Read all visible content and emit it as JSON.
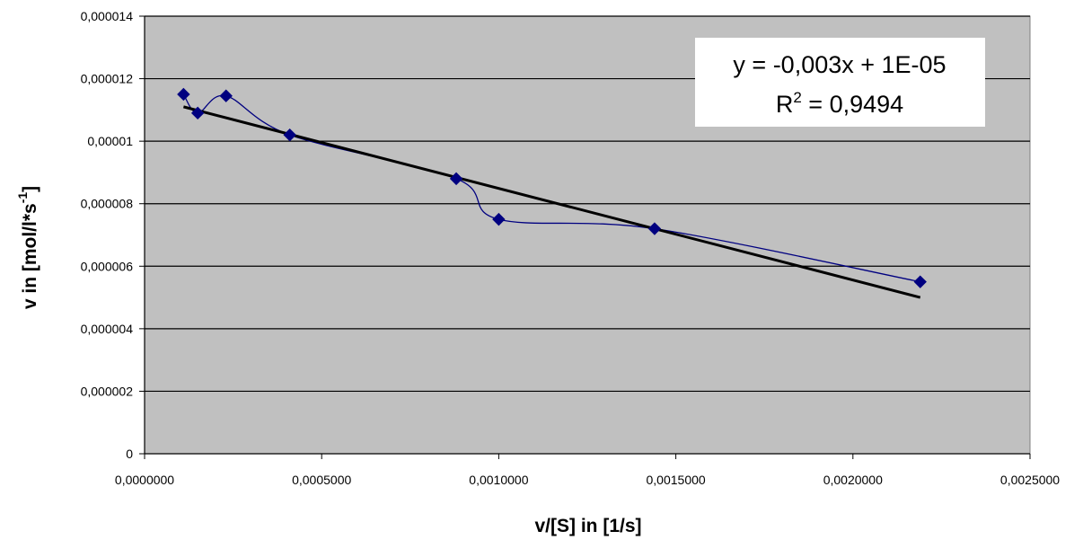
{
  "chart_data": {
    "type": "scatter",
    "xlabel": "v/[S] in [1/s]",
    "ylabel_main": "v in [mol/l*s",
    "ylabel_sup": "-1",
    "ylabel_end": "]",
    "xlim": [
      0,
      0.0025
    ],
    "ylim": [
      0,
      1.4e-05
    ],
    "grid": "horizontal",
    "x_ticks": [
      {
        "value": 0,
        "label": "0,0000000"
      },
      {
        "value": 0.0005,
        "label": "0,0005000"
      },
      {
        "value": 0.001,
        "label": "0,0010000"
      },
      {
        "value": 0.0015,
        "label": "0,0015000"
      },
      {
        "value": 0.002,
        "label": "0,0020000"
      },
      {
        "value": 0.0025,
        "label": "0,0025000"
      }
    ],
    "y_ticks": [
      {
        "value": 0,
        "label": "0"
      },
      {
        "value": 2e-06,
        "label": "0,000002"
      },
      {
        "value": 4e-06,
        "label": "0,000004"
      },
      {
        "value": 6e-06,
        "label": "0,000006"
      },
      {
        "value": 8e-06,
        "label": "0,000008"
      },
      {
        "value": 1e-05,
        "label": "0,00001"
      },
      {
        "value": 1.2e-05,
        "label": "0,000012"
      },
      {
        "value": 1.4e-05,
        "label": "0,000014"
      }
    ],
    "series": [
      {
        "points": [
          {
            "x": 0.00011,
            "y": 1.15e-05
          },
          {
            "x": 0.00015,
            "y": 1.09e-05
          },
          {
            "x": 0.00023,
            "y": 1.145e-05
          },
          {
            "x": 0.00041,
            "y": 1.02e-05
          },
          {
            "x": 0.00088,
            "y": 8.8e-06
          },
          {
            "x": 0.001,
            "y": 7.5e-06
          },
          {
            "x": 0.00144,
            "y": 7.2e-06
          },
          {
            "x": 0.00219,
            "y": 5.5e-06
          }
        ]
      }
    ],
    "trendline": {
      "x_start": 0.00011,
      "y_start": 1.11e-05,
      "x_end": 0.00219,
      "y_end": 5e-06,
      "equation_label": "y = -0,003x + 1E-05",
      "r2_prefix": "R",
      "r2_sup": "2",
      "r2_value": " = 0,9494"
    },
    "colors": {
      "plot_bg": "#c0c0c0",
      "series": "#000080",
      "trendline": "#000000",
      "grid": "#000000",
      "label_bg": "#ffffff"
    }
  }
}
